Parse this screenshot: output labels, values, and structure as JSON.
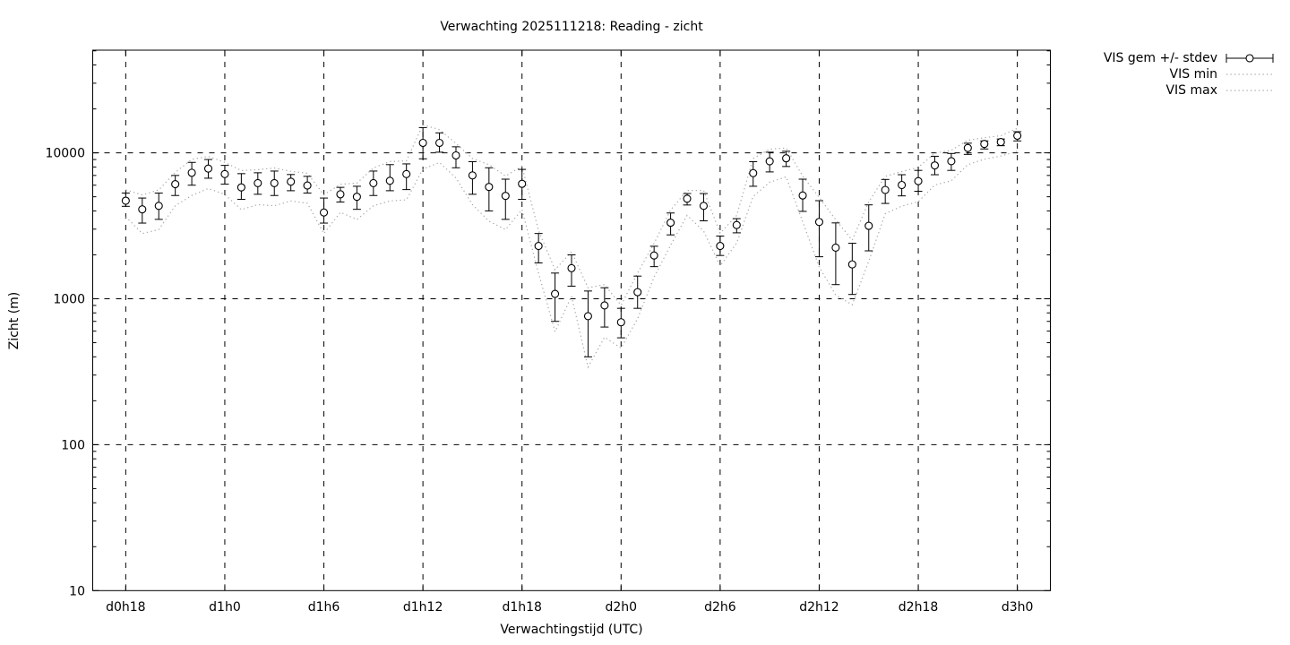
{
  "title": "Verwachting 2025111218: Reading - zicht",
  "xlabel": "Verwachtingstijd (UTC)",
  "ylabel": "Zicht (m)",
  "colors": {
    "foreground": "#000000",
    "background": "#ffffff",
    "minmax_dotted": "#a8a8a8"
  },
  "legend": [
    {
      "label": "VIS gem +/- stdev",
      "glyph": "errorbar"
    },
    {
      "label": "VIS min",
      "glyph": "dotted"
    },
    {
      "label": "VIS max",
      "glyph": "dotted"
    }
  ],
  "chart_data": {
    "type": "line",
    "subtype": "points-with-errorbars-and-minmax-envelope",
    "y_scale": "log",
    "grid": "dashed-on-major-ticks",
    "legend_position": "outside-top-right",
    "xlim_hours": [
      16,
      74
    ],
    "ylim": [
      10,
      50000
    ],
    "x_tick_hours": [
      18,
      24,
      30,
      36,
      42,
      48,
      54,
      60,
      66,
      72
    ],
    "x_tick_labels": [
      "d0h18",
      "d1h0",
      "d1h6",
      "d1h12",
      "d1h18",
      "d2h0",
      "d2h6",
      "d2h12",
      "d2h18",
      "d3h0"
    ],
    "y_tick_values": [
      10,
      100,
      1000,
      10000
    ],
    "y_tick_labels": [
      "10",
      "100",
      "1000",
      "10000"
    ],
    "x_hours": [
      18,
      19,
      20,
      21,
      22,
      23,
      24,
      25,
      26,
      27,
      28,
      29,
      30,
      31,
      32,
      33,
      34,
      35,
      36,
      37,
      38,
      39,
      40,
      41,
      42,
      43,
      44,
      45,
      46,
      47,
      48,
      49,
      50,
      51,
      52,
      53,
      54,
      55,
      56,
      57,
      58,
      59,
      60,
      61,
      62,
      63,
      64,
      65,
      66,
      67,
      68,
      69,
      70,
      71,
      72
    ],
    "series": [
      {
        "name": "VIS gem",
        "style": "points-errorbars",
        "mean": [
          4700,
          4100,
          4330,
          6100,
          7300,
          7800,
          7150,
          5800,
          6200,
          6200,
          6340,
          5970,
          3900,
          5200,
          5000,
          6200,
          6430,
          7150,
          11700,
          11700,
          9600,
          7000,
          5840,
          5070,
          6130,
          2300,
          1080,
          1620,
          760,
          900,
          690,
          1110,
          1980,
          3320,
          4850,
          4330,
          2300,
          3200,
          7260,
          8750,
          9170,
          5100,
          3360,
          2240,
          1720,
          3160,
          5570,
          6020,
          6400,
          8200,
          8760,
          10800,
          11500,
          11850,
          13100
        ],
        "stdev_low": [
          4300,
          3300,
          3500,
          5100,
          6000,
          6700,
          6100,
          4800,
          5200,
          5100,
          5500,
          5300,
          3300,
          4600,
          4100,
          5100,
          5500,
          5600,
          9100,
          10100,
          7900,
          5200,
          4000,
          3500,
          4800,
          1760,
          700,
          1220,
          400,
          640,
          540,
          860,
          1660,
          2740,
          4390,
          3420,
          1980,
          2830,
          5900,
          7400,
          8060,
          3970,
          1940,
          1250,
          1070,
          2130,
          4500,
          5070,
          5450,
          7080,
          7580,
          9760,
          10630,
          11190,
          12070
        ],
        "stdev_high": [
          5300,
          4900,
          5300,
          7000,
          8600,
          9000,
          8200,
          7200,
          7300,
          7500,
          7100,
          6900,
          4900,
          5800,
          5900,
          7500,
          8300,
          8400,
          14900,
          13700,
          11000,
          8700,
          7900,
          6600,
          7700,
          2800,
          1500,
          2000,
          1130,
          1190,
          860,
          1430,
          2290,
          3870,
          5260,
          5260,
          2690,
          3540,
          8700,
          10100,
          10250,
          6600,
          4700,
          3310,
          2400,
          4400,
          6570,
          7080,
          7580,
          9470,
          9900,
          11640,
          12070,
          12440,
          13960
        ]
      },
      {
        "name": "VIS min",
        "style": "dotted-line",
        "values": [
          3650,
          2800,
          2980,
          4340,
          5100,
          5700,
          5190,
          4080,
          4420,
          4340,
          4680,
          4510,
          2800,
          3910,
          3490,
          4340,
          4680,
          4760,
          7740,
          8590,
          6720,
          4420,
          3400,
          2980,
          4080,
          1500,
          595,
          1040,
          340,
          545,
          459,
          730,
          1410,
          2330,
          3730,
          2910,
          1680,
          2410,
          5020,
          6290,
          6850,
          3370,
          1650,
          1060,
          910,
          1810,
          3830,
          4310,
          4630,
          6020,
          6440,
          8300,
          9040,
          9510,
          10260
        ]
      },
      {
        "name": "VIS max",
        "style": "dotted-line",
        "values": [
          5570,
          5150,
          5570,
          7350,
          9030,
          9450,
          8610,
          7560,
          7670,
          7880,
          7460,
          7250,
          5150,
          6090,
          6200,
          7880,
          8720,
          8820,
          15600,
          14400,
          11600,
          9140,
          8300,
          6930,
          8090,
          2940,
          1580,
          2100,
          1190,
          1250,
          903,
          1500,
          2400,
          4060,
          5520,
          5520,
          2820,
          3720,
          9140,
          10600,
          10800,
          6930,
          4940,
          3480,
          2520,
          4620,
          6900,
          7430,
          7960,
          9940,
          10400,
          12200,
          12700,
          13100,
          14700
        ]
      }
    ]
  }
}
